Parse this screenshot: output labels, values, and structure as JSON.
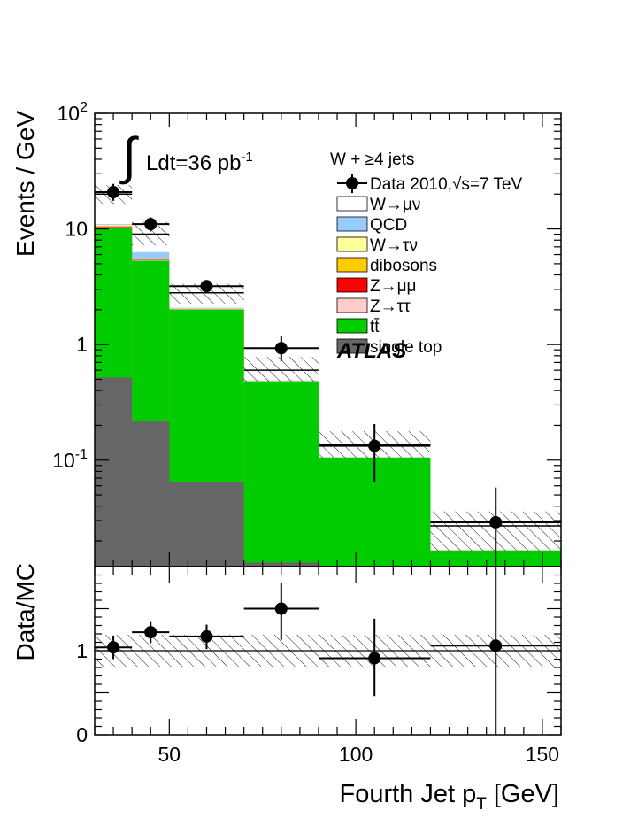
{
  "chart_data": {
    "type": "bar",
    "top": {
      "ylabel": "Events / GeV",
      "yscale": "log",
      "ylim": [
        0.012,
        100
      ],
      "yticks": [
        {
          "value": 100,
          "base": "10",
          "exp": "2"
        },
        {
          "value": 10,
          "base": "10",
          "exp": ""
        },
        {
          "value": 1,
          "base": "1",
          "exp": ""
        },
        {
          "value": 0.1,
          "base": "10",
          "exp": "-1"
        }
      ],
      "bins": [
        30,
        40,
        50,
        70,
        90,
        120,
        155
      ],
      "stack": [
        {
          "name": "single top",
          "color": "#666666",
          "values": [
            0.52,
            0.22,
            0.065,
            0.013,
            0.012,
            0.012
          ]
        },
        {
          "name": "tt̄",
          "color": "#00cc00",
          "values": [
            10.2,
            5.3,
            2.0,
            0.48,
            0.105,
            0.0165
          ]
        },
        {
          "name": "Z→ττ",
          "color": "#ffcccc",
          "values": [
            10.35,
            5.35,
            2.0,
            0.48,
            0.105,
            0.0165
          ]
        },
        {
          "name": "Z→μμ",
          "color": "#ff0000",
          "values": [
            10.5,
            5.4,
            2.01,
            0.48,
            0.105,
            0.0165
          ]
        },
        {
          "name": "dibosons",
          "color": "#ffcc00",
          "values": [
            10.55,
            5.42,
            2.02,
            0.48,
            0.105,
            0.0165
          ]
        },
        {
          "name": "W→τν",
          "color": "#ffff99",
          "values": [
            10.8,
            5.55,
            2.04,
            0.485,
            0.106,
            0.0166
          ]
        },
        {
          "name": "QCD",
          "color": "#99ccff",
          "values": [
            11.0,
            6.3,
            2.08,
            0.49,
            0.107,
            0.0167
          ]
        },
        {
          "name": "W→μν",
          "color": "#ffffff",
          "values": [
            20.0,
            9.0,
            2.8,
            0.6,
            0.135,
            0.027
          ]
        }
      ],
      "uncertainty": {
        "low": [
          16.5,
          7.2,
          2.25,
          0.48,
          0.105,
          0.0165
        ],
        "high": [
          24.0,
          11.5,
          3.35,
          0.78,
          0.178,
          0.036
        ]
      },
      "data": {
        "name": "Data 2010,√s=7 TeV",
        "x": [
          35,
          45,
          60,
          80,
          105,
          137.5
        ],
        "xerr": [
          5,
          5,
          10,
          10,
          15,
          17.5
        ],
        "y": [
          20.8,
          11.0,
          3.2,
          0.93,
          0.133,
          0.029
        ],
        "ylow": [
          17.5,
          9.5,
          2.8,
          0.72,
          0.065,
          0.012
        ],
        "yhigh": [
          24.5,
          12.6,
          3.6,
          1.18,
          0.205,
          0.058
        ]
      },
      "legend_title": "W + ≥4 jets",
      "legend_placement": "top-right",
      "lumi_label": "Ldt=36 pb",
      "lumi_exp": "-1",
      "atlas_label": "ATLAS"
    },
    "ratio": {
      "ylabel": "Data/MC",
      "ylim": [
        0,
        2
      ],
      "yticks": [
        {
          "value": 0,
          "label": "0"
        },
        {
          "value": 1,
          "label": "1"
        }
      ],
      "band": {
        "low": [
          0.81,
          0.81,
          0.81,
          0.81,
          0.81,
          0.81
        ],
        "high": [
          1.19,
          1.19,
          1.19,
          1.19,
          1.19,
          1.19
        ]
      },
      "points": {
        "x": [
          35,
          45,
          60,
          80,
          105,
          137.5
        ],
        "xerr": [
          5,
          5,
          10,
          10,
          15,
          17.5
        ],
        "y": [
          1.04,
          1.22,
          1.17,
          1.5,
          0.91,
          1.06
        ],
        "ylow": [
          0.9,
          1.09,
          1.02,
          1.13,
          0.46,
          0.0
        ],
        "yhigh": [
          1.18,
          1.34,
          1.31,
          1.8,
          1.38,
          2.0
        ]
      }
    },
    "xlabel": "Fourth Jet p",
    "xlabel_sub": "T",
    "xlabel_unit": "[GeV]",
    "xlim": [
      30,
      155
    ],
    "xticks": [
      {
        "value": 50,
        "label": "50"
      },
      {
        "value": 100,
        "label": "100"
      },
      {
        "value": 150,
        "label": "150"
      }
    ]
  }
}
